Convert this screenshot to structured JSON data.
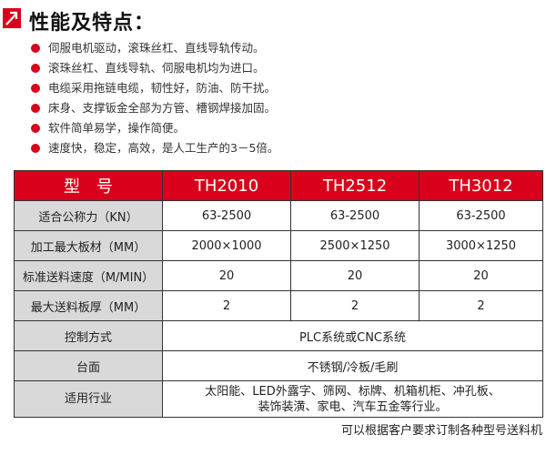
{
  "header": {
    "title": "性能及特点：",
    "icon": "arrow-up-right-icon"
  },
  "features": [
    "伺服电机驱动，滚珠丝杠、直线导轨传动。",
    "滚珠丝杠、直线导轨、伺服电机均为进口。",
    "电缆采用拖链电缆，韧性好，防油、防干扰。",
    "床身、支撑钣金全部为方管、槽钢焊接加固。",
    "软件简单易学，操作简便。",
    "速度快，稳定，高效，是人工生产的3－5倍。"
  ],
  "table": {
    "header": [
      "型　号",
      "TH2010",
      "TH2512",
      "TH3012"
    ],
    "rows": [
      [
        "适合公称力（KN）",
        "63-2500",
        "63-2500",
        "63-2500"
      ],
      [
        "加工最大板材（MM）",
        "2000×1000",
        "2500×1250",
        "3000×1250"
      ],
      [
        "标准送料速度（M/MIN）",
        "20",
        "20",
        "20"
      ],
      [
        "最大送料板厚（MM）",
        "2",
        "2",
        "2"
      ]
    ],
    "span_rows": [
      {
        "label": "控制方式",
        "value": "PLC系统或CNC系统"
      },
      {
        "label": "台面",
        "value": "不锈钢/冷板/毛刷"
      },
      {
        "label": "适用行业",
        "value": "太阳能、LED外露字、筛网、标牌、机箱机柜、冲孔板、",
        "value2": "装饰装潢、家电、汽车五金等行业。"
      }
    ]
  },
  "footer": "可以根据客户要求订制各种型号送料机",
  "colors": {
    "accent": "#d9001b",
    "label_bg": "#d9d9d9"
  }
}
